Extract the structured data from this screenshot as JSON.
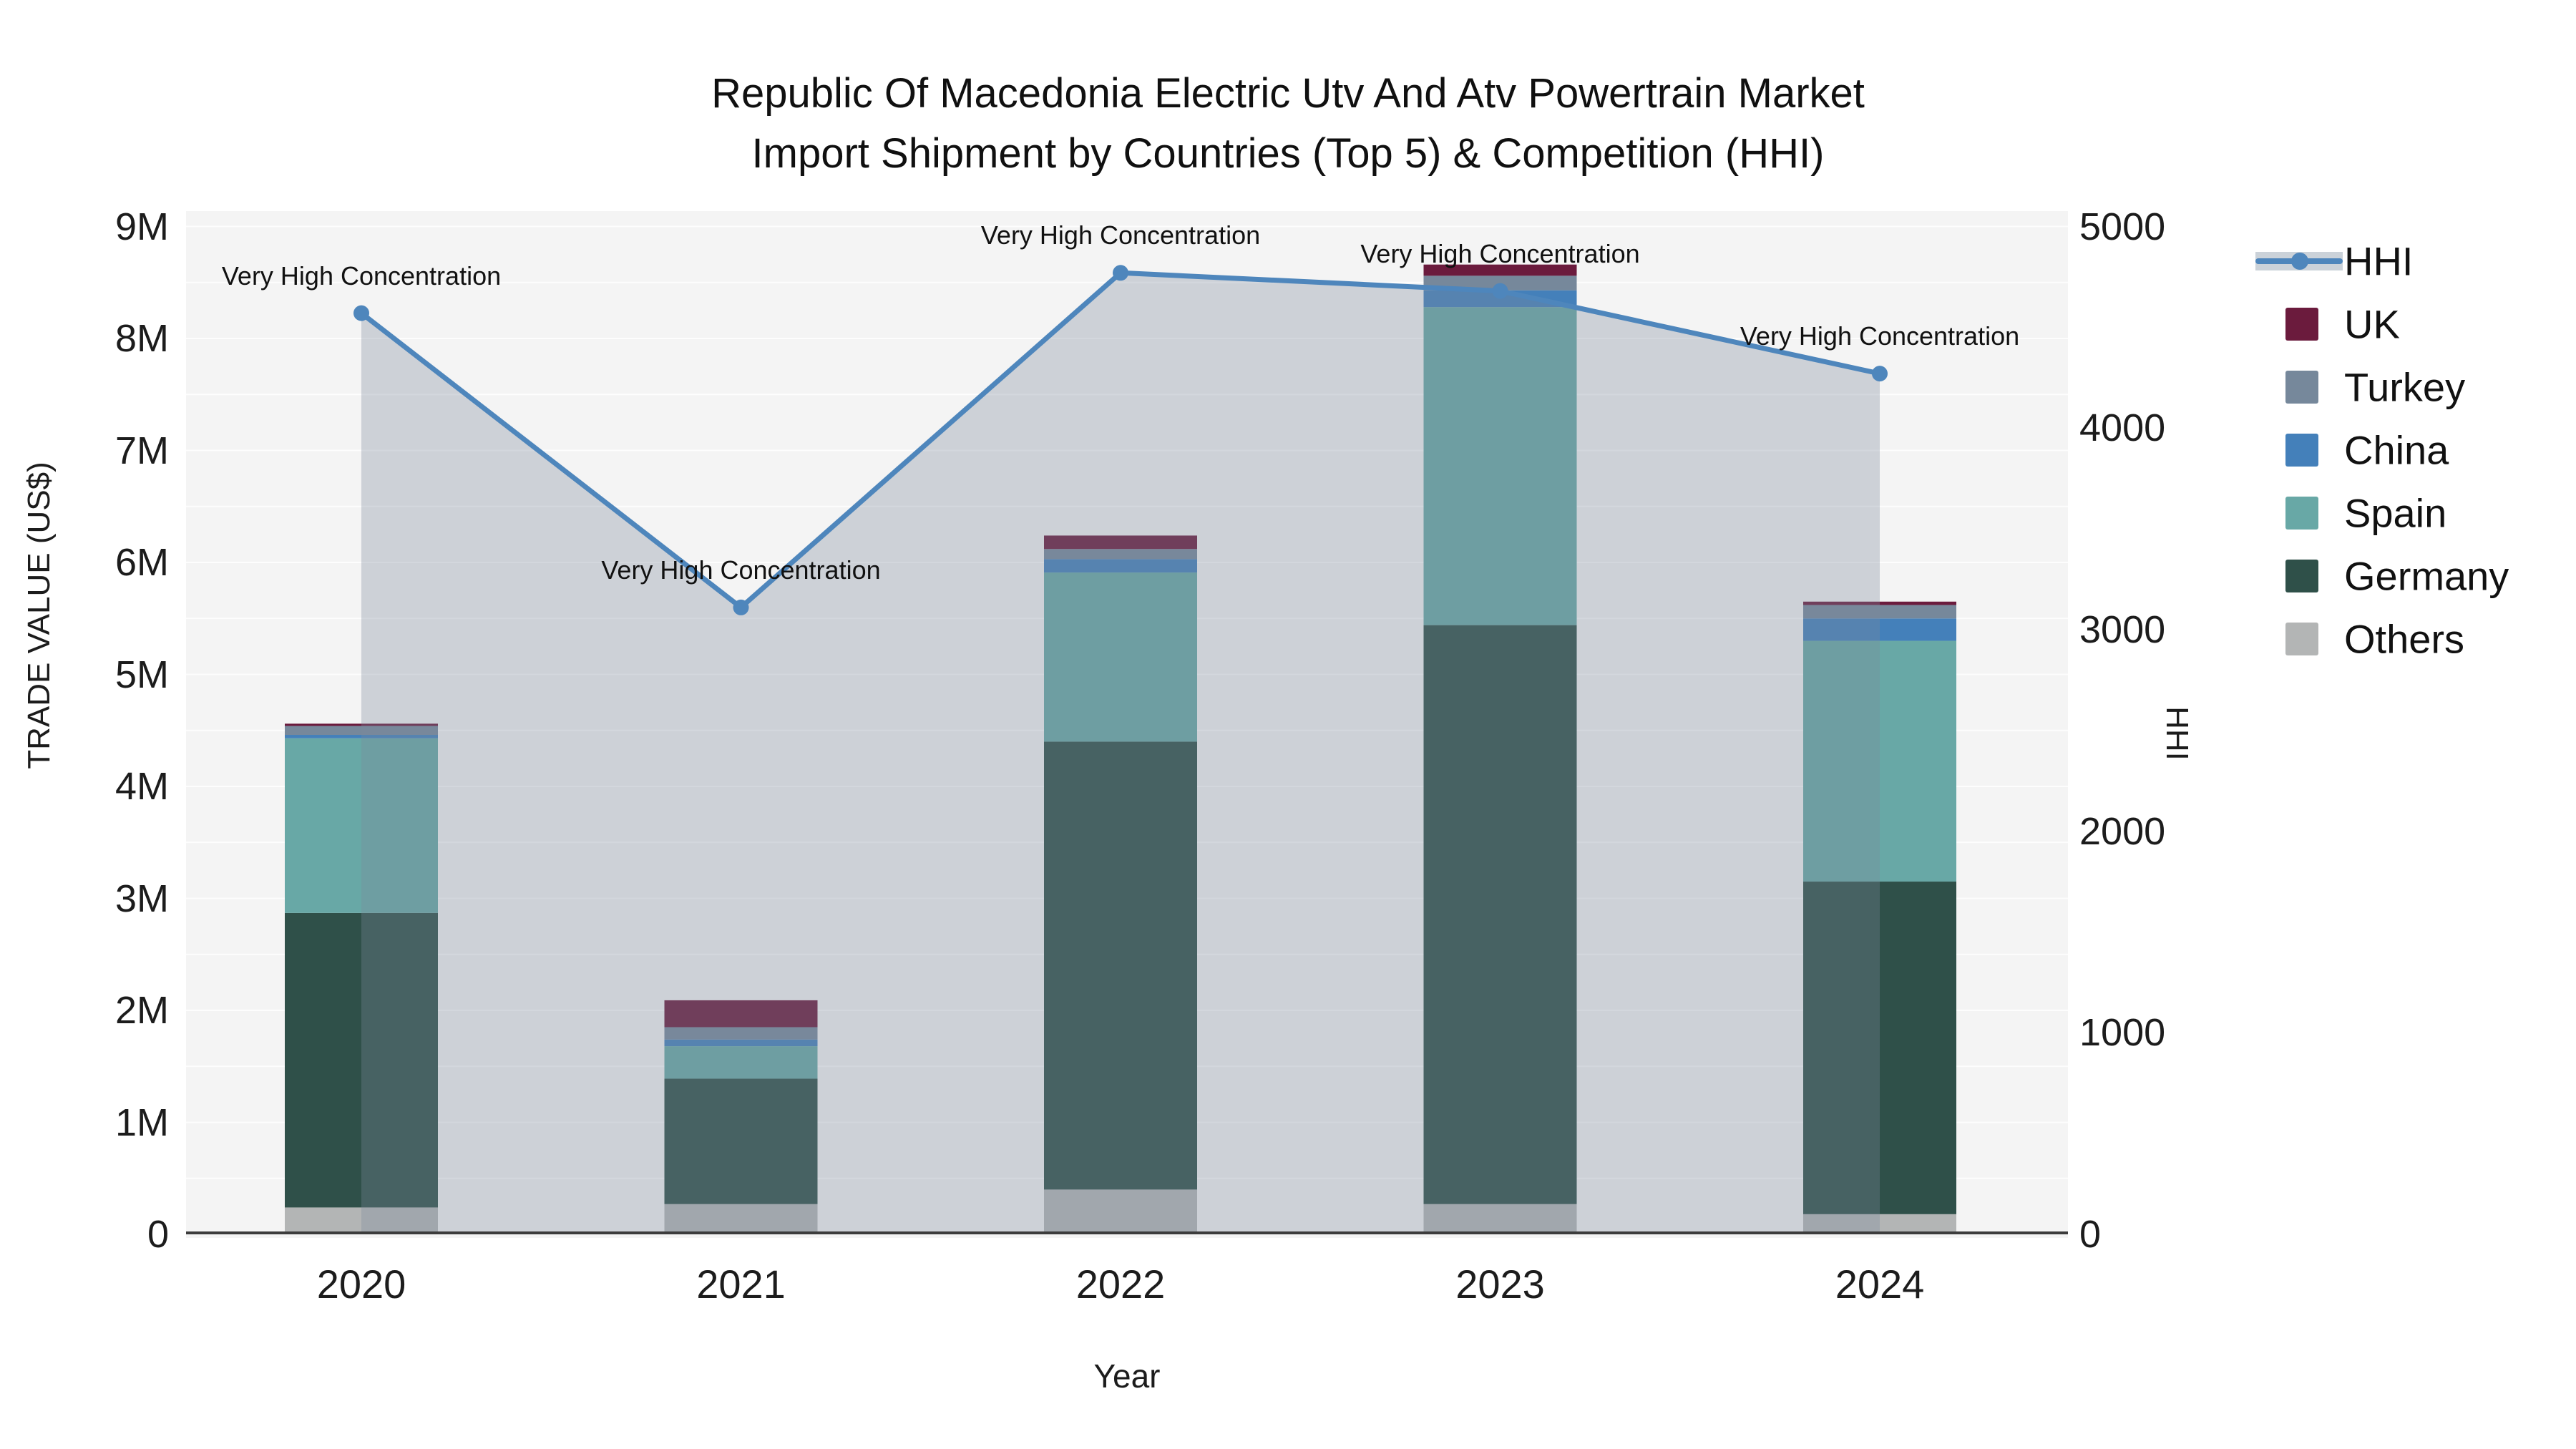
{
  "title": {
    "line1": "Republic Of Macedonia Electric Utv And Atv Powertrain Market",
    "line2": "Import Shipment by Countries (Top 5) & Competition (HHI)"
  },
  "axes": {
    "left": {
      "title": "TRADE VALUE (US$)",
      "ticks": [
        "0",
        "1M",
        "2M",
        "3M",
        "4M",
        "5M",
        "6M",
        "7M",
        "8M",
        "9M"
      ],
      "max_millions": 9
    },
    "right": {
      "title": "HHI",
      "ticks": [
        "0",
        "1000",
        "2000",
        "3000",
        "4000",
        "5000"
      ],
      "max": 5000
    },
    "x": {
      "title": "Year",
      "categories": [
        "2020",
        "2021",
        "2022",
        "2023",
        "2024"
      ]
    }
  },
  "legend": [
    {
      "label": "HHI",
      "type": "line",
      "color": "#4E86BC"
    },
    {
      "label": "UK",
      "type": "box",
      "color": "#6B1B3D"
    },
    {
      "label": "Turkey",
      "type": "box",
      "color": "#76889B"
    },
    {
      "label": "China",
      "type": "box",
      "color": "#4480BA"
    },
    {
      "label": "Spain",
      "type": "box",
      "color": "#68A8A6"
    },
    {
      "label": "Germany",
      "type": "box",
      "color": "#2F5049"
    },
    {
      "label": "Others",
      "type": "box",
      "color": "#B3B5B5"
    }
  ],
  "chart_data": {
    "type": "bar",
    "subtype": "stacked-bar-with-line",
    "title": "Republic Of Macedonia Electric Utv And Atv Powertrain Market Import Shipment by Countries (Top 5) & Competition (HHI)",
    "xlabel": "Year",
    "ylabel": "TRADE VALUE (US$)",
    "y2label": "HHI",
    "categories": [
      "2020",
      "2021",
      "2022",
      "2023",
      "2024"
    ],
    "values_unit": "million US$",
    "ylim_left_millions": [
      0,
      9
    ],
    "ylim_right": [
      0,
      5000
    ],
    "grid": {
      "spacing_millions": 0.5,
      "color": "#FFFFFF"
    },
    "series": [
      {
        "name": "Others",
        "color": "#B3B5B5",
        "values": [
          0.24,
          0.27,
          0.4,
          0.27,
          0.18
        ]
      },
      {
        "name": "Germany",
        "color": "#2F5049",
        "values": [
          2.63,
          1.12,
          4.0,
          5.17,
          2.97
        ]
      },
      {
        "name": "Spain",
        "color": "#68A8A6",
        "values": [
          1.56,
          0.29,
          1.51,
          2.84,
          2.15
        ]
      },
      {
        "name": "China",
        "color": "#4480BA",
        "values": [
          0.03,
          0.06,
          0.12,
          0.15,
          0.2
        ]
      },
      {
        "name": "Turkey",
        "color": "#76889B",
        "values": [
          0.08,
          0.11,
          0.09,
          0.13,
          0.12
        ]
      },
      {
        "name": "UK",
        "color": "#6B1B3D",
        "values": [
          0.02,
          0.24,
          0.12,
          0.1,
          0.03
        ]
      }
    ],
    "totals_millions": [
      4.56,
      2.09,
      6.24,
      8.66,
      5.65
    ],
    "line_series": {
      "name": "HHI",
      "axis": "right",
      "color": "#4E86BC",
      "area_fill": "rgba(123,138,155,0.32)",
      "values": [
        4570,
        3110,
        4770,
        4680,
        4270
      ]
    },
    "annotations": [
      {
        "x": "2020",
        "text": "Very High Concentration"
      },
      {
        "x": "2021",
        "text": "Very High Concentration"
      },
      {
        "x": "2022",
        "text": "Very High Concentration"
      },
      {
        "x": "2023",
        "text": "Very High Concentration"
      },
      {
        "x": "2024",
        "text": "Very High Concentration"
      }
    ],
    "legend_position": "right"
  }
}
